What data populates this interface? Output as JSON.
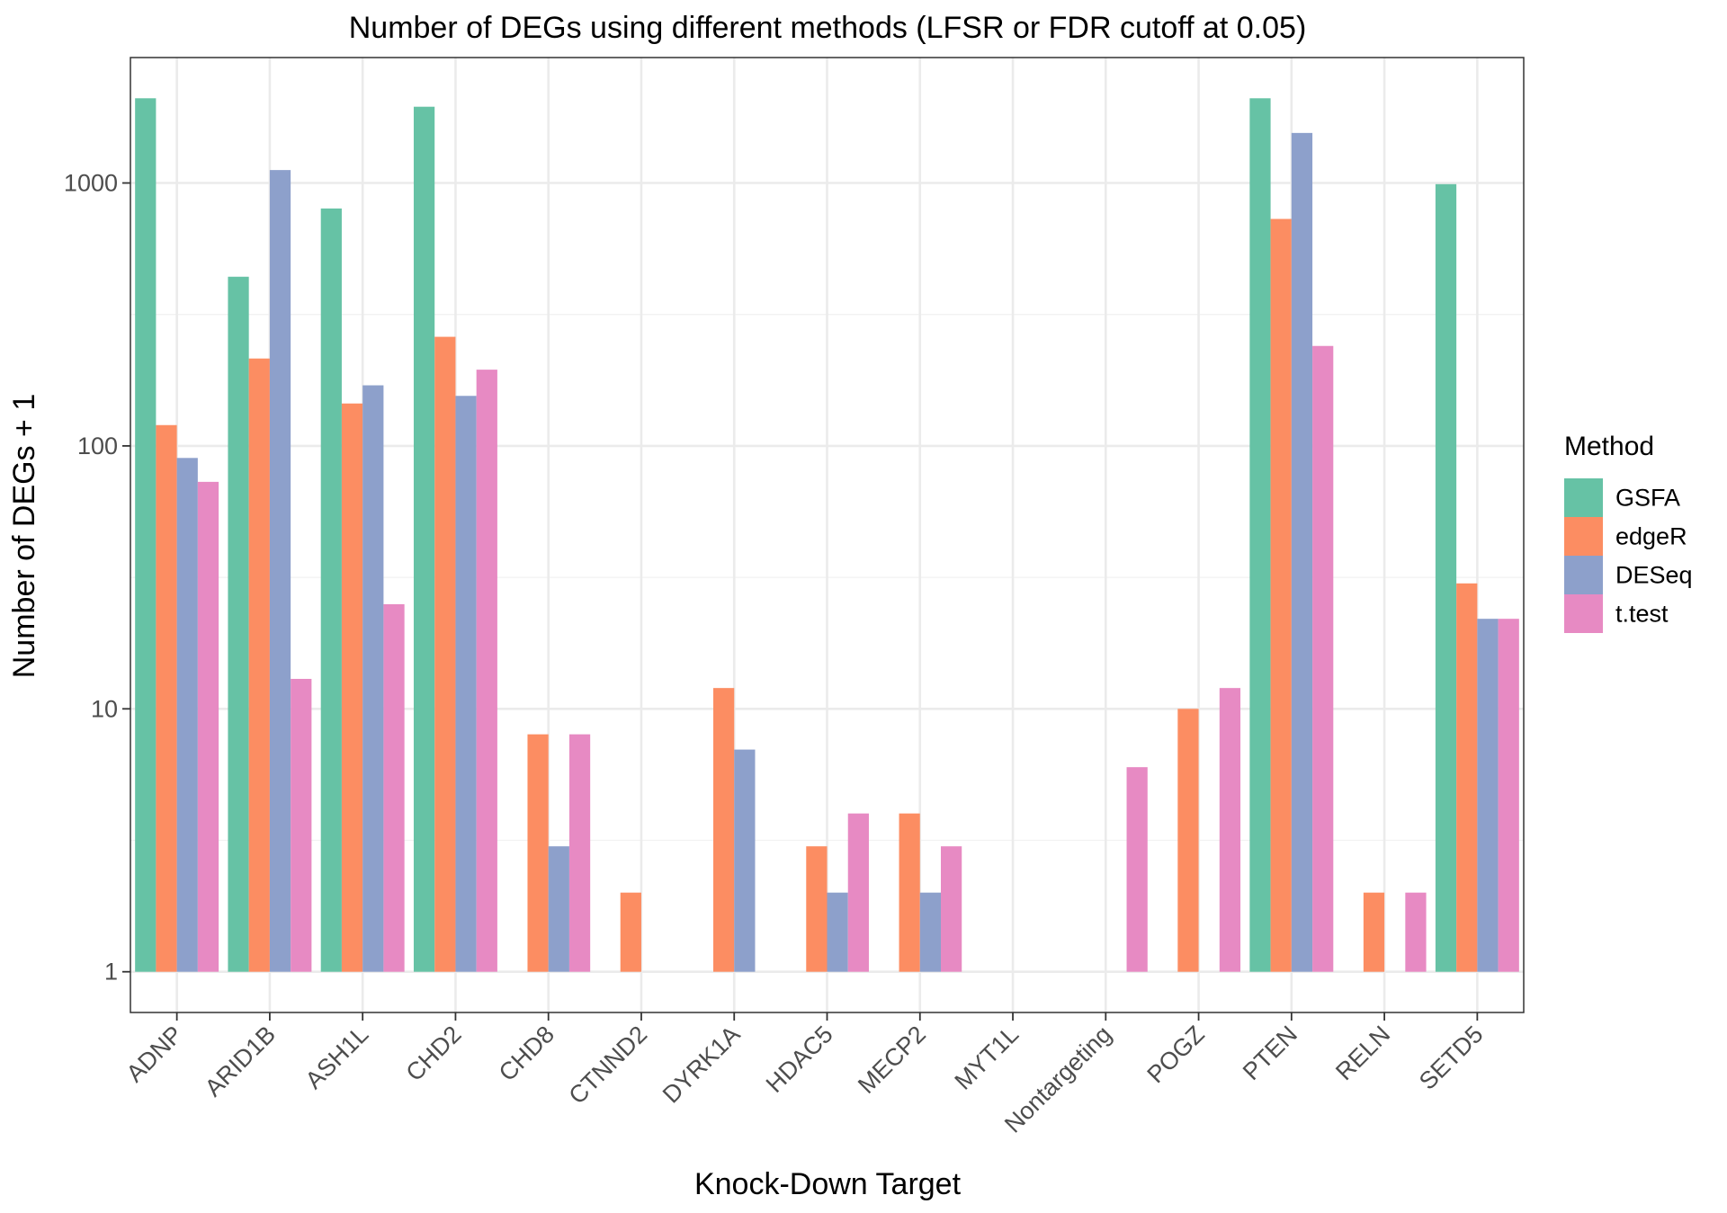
{
  "chart_data": {
    "type": "bar",
    "title": "Number of DEGs using different methods (LFSR or FDR cutoff at 0.05)",
    "xlabel": "Knock-Down Target",
    "ylabel": "Number of DEGs + 1",
    "y_scale": "log10",
    "ylim": [
      0.7,
      3000
    ],
    "y_ticks": [
      1,
      10,
      100,
      1000
    ],
    "y_tick_labels": [
      "1",
      "10",
      "100",
      "1000"
    ],
    "grid": true,
    "legend": {
      "title": "Method",
      "position": "right"
    },
    "categories": [
      "ADNP",
      "ARID1B",
      "ASH1L",
      "CHD2",
      "CHD8",
      "CTNND2",
      "DYRK1A",
      "HDAC5",
      "MECP2",
      "MYT1L",
      "Nontargeting",
      "POGZ",
      "PTEN",
      "RELN",
      "SETD5"
    ],
    "series": [
      {
        "name": "GSFA",
        "color": "#66c2a5",
        "values": [
          2100,
          440,
          800,
          1950,
          1,
          1,
          1,
          1,
          1,
          1,
          1,
          1,
          2100,
          1,
          990
        ]
      },
      {
        "name": "edgeR",
        "color": "#fc8d62",
        "values": [
          120,
          215,
          145,
          260,
          8,
          2,
          12,
          3,
          4,
          1,
          1,
          10,
          730,
          2,
          30
        ]
      },
      {
        "name": "DESeq",
        "color": "#8da0cb",
        "values": [
          90,
          1120,
          170,
          155,
          3,
          1,
          7,
          2,
          2,
          1,
          1,
          1,
          1550,
          1,
          22
        ]
      },
      {
        "name": "t.test",
        "color": "#e78ac3",
        "values": [
          73,
          13,
          25,
          195,
          8,
          1,
          1,
          4,
          3,
          1,
          6,
          12,
          240,
          2,
          22
        ]
      }
    ]
  }
}
